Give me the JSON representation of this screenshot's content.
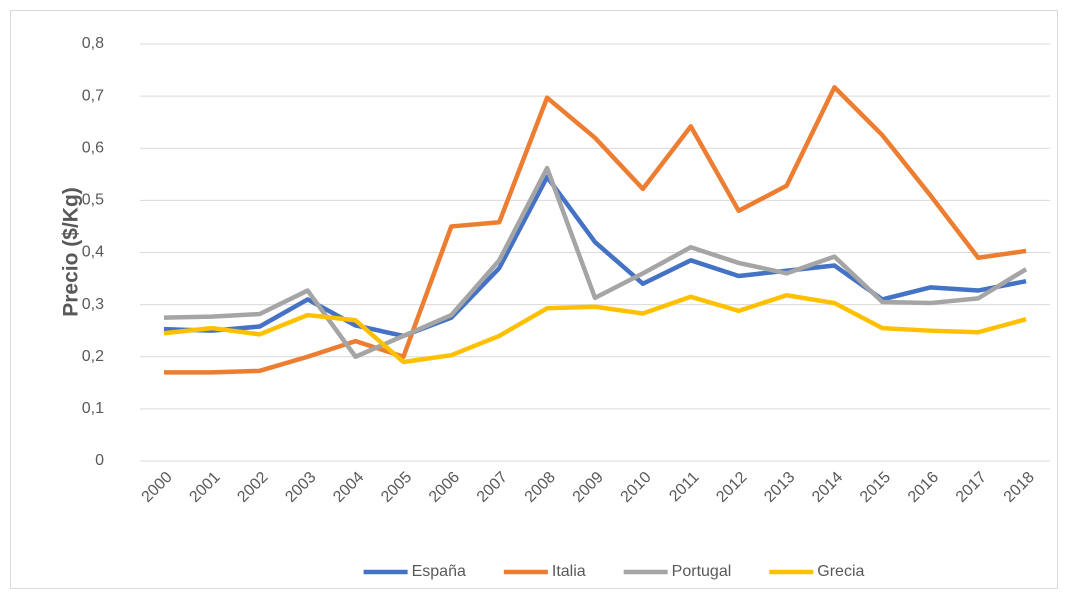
{
  "chart_data": {
    "type": "line",
    "y_label": "Precio ($/Kg)",
    "categories": [
      "2000",
      "2001",
      "2002",
      "2003",
      "2004",
      "2005",
      "2006",
      "2007",
      "2008",
      "2009",
      "2010",
      "2011",
      "2012",
      "2013",
      "2014",
      "2015",
      "2016",
      "2017",
      "2018"
    ],
    "series": [
      {
        "name": "España",
        "color": "#4472c4",
        "values": [
          0.253,
          0.25,
          0.258,
          0.31,
          0.26,
          0.24,
          0.275,
          0.37,
          0.545,
          0.42,
          0.34,
          0.385,
          0.355,
          0.365,
          0.375,
          0.31,
          0.333,
          0.327,
          0.345
        ]
      },
      {
        "name": "Italia",
        "color": "#ed7d31",
        "values": [
          0.17,
          0.17,
          0.173,
          0.2,
          0.23,
          0.2,
          0.45,
          0.458,
          0.697,
          0.62,
          0.522,
          0.642,
          0.48,
          0.528,
          0.717,
          0.625,
          0.51,
          0.39,
          0.403
        ]
      },
      {
        "name": "Portugal",
        "color": "#a5a5a5",
        "values": [
          0.275,
          0.277,
          0.282,
          0.327,
          0.2,
          0.24,
          0.28,
          0.385,
          0.562,
          0.313,
          0.36,
          0.41,
          0.38,
          0.36,
          0.392,
          0.305,
          0.303,
          0.312,
          0.368
        ]
      },
      {
        "name": "Grecia",
        "color": "#ffc000",
        "values": [
          0.245,
          0.255,
          0.243,
          0.28,
          0.27,
          0.19,
          0.203,
          0.24,
          0.293,
          0.296,
          0.283,
          0.315,
          0.288,
          0.318,
          0.303,
          0.255,
          0.25,
          0.247,
          0.272
        ]
      }
    ],
    "ylim": [
      0,
      0.8
    ],
    "yticks": [
      0,
      {
        "value": 0.1,
        "label": "0,1"
      },
      {
        "value": 0.2,
        "label": "0,2"
      },
      {
        "value": 0.3,
        "label": "0,3"
      },
      {
        "value": 0.4,
        "label": "0,4"
      },
      {
        "value": 0.5,
        "label": "0,5"
      },
      {
        "value": 0.6,
        "label": "0,6"
      },
      {
        "value": 0.7,
        "label": "0,7"
      },
      {
        "value": 0.8,
        "label": "0,8"
      }
    ],
    "grid": true,
    "legend": "bottom"
  }
}
